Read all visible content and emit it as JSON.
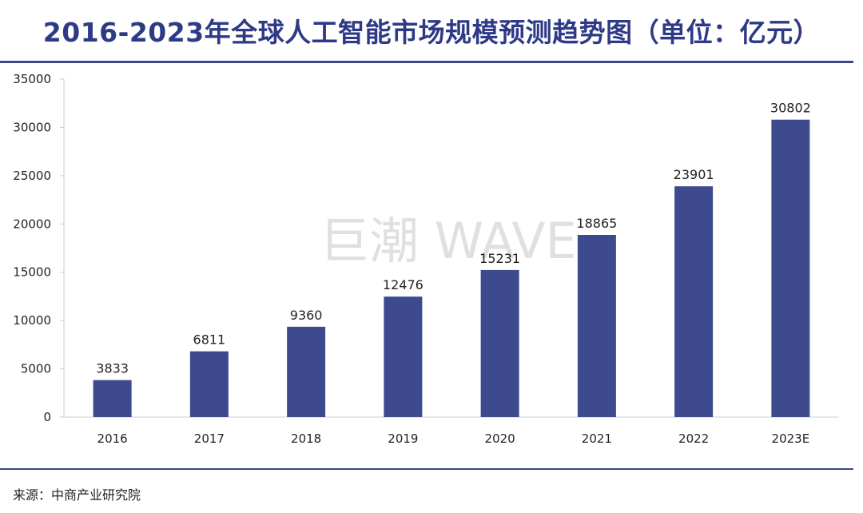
{
  "header": {
    "title": "2016-2023年全球人工智能市场规模预测趋势图（单位：亿元）"
  },
  "watermark": "巨潮 WAVE",
  "footer": {
    "source": "来源：中商产业研究院"
  },
  "colors": {
    "bar": "#3d4b8e",
    "title": "#2e3a86",
    "rule": "#3a4a8c",
    "axis": "#cccccc"
  },
  "chart_data": {
    "type": "bar",
    "title": "2016-2023年全球人工智能市场规模预测趋势图（单位：亿元）",
    "categories": [
      "2016",
      "2017",
      "2018",
      "2019",
      "2020",
      "2021",
      "2022",
      "2023E"
    ],
    "values": [
      3833,
      6811,
      9360,
      12476,
      15231,
      18865,
      23901,
      30802
    ],
    "value_labels": [
      "3833",
      "6811",
      "9360",
      "12476",
      "15231",
      "18865",
      "23901",
      "30802"
    ],
    "yticks": [
      "0",
      "5000",
      "10000",
      "15000",
      "20000",
      "25000",
      "30000",
      "35000"
    ],
    "ylim": [
      0,
      35000
    ],
    "xlabel": "",
    "ylabel": "",
    "grid": false,
    "legend": "none"
  }
}
